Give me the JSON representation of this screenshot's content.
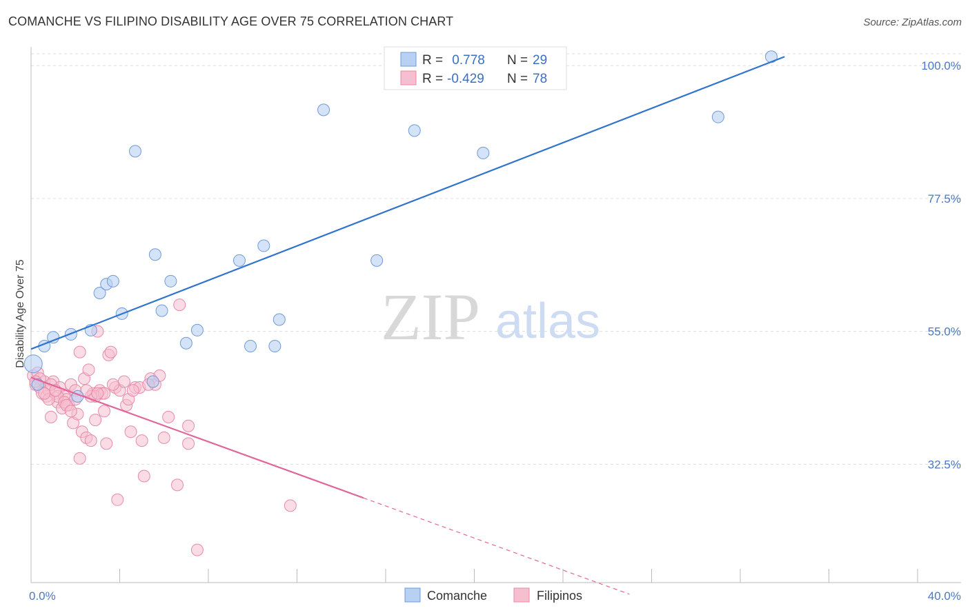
{
  "title": "COMANCHE VS FILIPINO DISABILITY AGE OVER 75 CORRELATION CHART",
  "source": "Source: ZipAtlas.com",
  "watermark": {
    "zip": "ZIP",
    "atlas": "atlas"
  },
  "colors": {
    "comanche_fill": "#b8d0f2",
    "comanche_stroke": "#6f9ad8",
    "comanche_line": "#2f73cc",
    "filipinos_fill": "#f6bfd0",
    "filipinos_stroke": "#e889a8",
    "filipinos_line": "#e0669a",
    "tick_label": "#4a78c2",
    "grid": "#dddddd"
  },
  "legend": {
    "rows": [
      {
        "r_label": "R =",
        "r_value": " 0.778",
        "n_label": "N =",
        "n_value": "29"
      },
      {
        "r_label": "R =",
        "r_value": "-0.429",
        "n_label": "N =",
        "n_value": "78"
      }
    ]
  },
  "chart_data": {
    "type": "scatter",
    "title": "COMANCHE VS FILIPINO DISABILITY AGE OVER 75 CORRELATION CHART",
    "xlabel": "",
    "ylabel": "Disability Age Over 75",
    "xlim": [
      0,
      40
    ],
    "ylim": [
      12,
      102
    ],
    "x_tick_labels": [
      "0.0%",
      "40.0%"
    ],
    "y_ticks": [
      32.5,
      55.0,
      77.5,
      100.0
    ],
    "y_tick_labels": [
      "32.5%",
      "55.0%",
      "77.5%",
      "100.0%"
    ],
    "grid": "horizontal dashed",
    "legend_position": "top-center and bottom",
    "series": [
      {
        "name": "Comanche",
        "r": 0.778,
        "n": 29,
        "points": [
          [
            0.1,
            49.5
          ],
          [
            0.6,
            52.5
          ],
          [
            1.0,
            54.0
          ],
          [
            1.8,
            54.5
          ],
          [
            2.7,
            55.2
          ],
          [
            3.1,
            61.5
          ],
          [
            3.4,
            63.0
          ],
          [
            3.7,
            63.5
          ],
          [
            4.1,
            58.0
          ],
          [
            4.7,
            85.5
          ],
          [
            5.5,
            46.5
          ],
          [
            5.6,
            68.0
          ],
          [
            5.9,
            58.5
          ],
          [
            6.3,
            63.5
          ],
          [
            7.0,
            53.0
          ],
          [
            7.5,
            55.2
          ],
          [
            9.4,
            67.0
          ],
          [
            9.9,
            52.5
          ],
          [
            10.5,
            69.5
          ],
          [
            11.0,
            52.5
          ],
          [
            11.2,
            57.0
          ],
          [
            13.2,
            92.5
          ],
          [
            15.6,
            67.0
          ],
          [
            17.3,
            89.0
          ],
          [
            20.4,
            85.2
          ],
          [
            31.0,
            91.3
          ],
          [
            33.4,
            101.5
          ],
          [
            2.1,
            44.0
          ],
          [
            0.3,
            46.0
          ]
        ],
        "trend": {
          "x": [
            0,
            34.0
          ],
          "y": [
            52.0,
            101.5
          ]
        }
      },
      {
        "name": "Filipinos",
        "r": -0.429,
        "n": 78,
        "points": [
          [
            0.1,
            47.5
          ],
          [
            0.2,
            46.0
          ],
          [
            0.3,
            48.0
          ],
          [
            0.4,
            45.5
          ],
          [
            0.5,
            44.5
          ],
          [
            0.6,
            46.5
          ],
          [
            0.7,
            44.0
          ],
          [
            0.8,
            45.0
          ],
          [
            0.9,
            40.5
          ],
          [
            1.0,
            46.5
          ],
          [
            1.1,
            44.5
          ],
          [
            1.2,
            43.0
          ],
          [
            1.3,
            45.5
          ],
          [
            1.4,
            42.0
          ],
          [
            1.5,
            44.0
          ],
          [
            1.6,
            43.5
          ],
          [
            1.7,
            42.5
          ],
          [
            1.8,
            46.0
          ],
          [
            1.9,
            39.5
          ],
          [
            2.0,
            45.0
          ],
          [
            2.1,
            41.0
          ],
          [
            2.2,
            51.5
          ],
          [
            2.3,
            38.0
          ],
          [
            2.4,
            47.0
          ],
          [
            2.5,
            37.0
          ],
          [
            2.6,
            48.5
          ],
          [
            2.7,
            36.5
          ],
          [
            2.8,
            44.5
          ],
          [
            2.9,
            40.0
          ],
          [
            3.0,
            55.0
          ],
          [
            3.1,
            45.0
          ],
          [
            3.2,
            44.5
          ],
          [
            3.3,
            41.5
          ],
          [
            3.4,
            36.0
          ],
          [
            3.5,
            51.0
          ],
          [
            3.6,
            51.5
          ],
          [
            3.8,
            45.5
          ],
          [
            3.9,
            26.5
          ],
          [
            4.0,
            45.0
          ],
          [
            4.2,
            46.5
          ],
          [
            4.3,
            42.5
          ],
          [
            4.4,
            43.5
          ],
          [
            4.5,
            38.0
          ],
          [
            4.7,
            45.5
          ],
          [
            4.9,
            45.5
          ],
          [
            5.0,
            36.5
          ],
          [
            5.1,
            30.5
          ],
          [
            5.4,
            47.0
          ],
          [
            5.6,
            46.0
          ],
          [
            5.8,
            47.5
          ],
          [
            6.0,
            37.0
          ],
          [
            6.2,
            40.5
          ],
          [
            6.6,
            29.0
          ],
          [
            6.7,
            59.5
          ],
          [
            7.1,
            39.0
          ],
          [
            7.1,
            36.0
          ],
          [
            7.5,
            18.0
          ],
          [
            11.7,
            25.5
          ],
          [
            1.2,
            44.0
          ],
          [
            0.9,
            46.0
          ],
          [
            0.4,
            47.0
          ],
          [
            2.9,
            44.0
          ],
          [
            2.0,
            43.5
          ],
          [
            1.5,
            43.0
          ],
          [
            0.8,
            43.5
          ],
          [
            3.7,
            46.0
          ],
          [
            2.2,
            33.5
          ],
          [
            1.6,
            42.5
          ],
          [
            3.3,
            44.5
          ],
          [
            0.6,
            44.5
          ],
          [
            2.7,
            44.0
          ],
          [
            4.6,
            45.0
          ],
          [
            1.1,
            45.0
          ],
          [
            2.5,
            45.0
          ],
          [
            0.2,
            46.5
          ],
          [
            1.8,
            41.5
          ],
          [
            5.3,
            46.0
          ],
          [
            3.0,
            44.5
          ]
        ],
        "trend": {
          "x": [
            0,
            15.0
          ],
          "y": [
            47.2,
            26.8
          ]
        },
        "trend_extension": {
          "x": [
            15.0,
            27.0
          ],
          "y": [
            26.8,
            10.5
          ]
        }
      }
    ]
  },
  "bottom_legend": [
    {
      "label": "Comanche"
    },
    {
      "label": "Filipinos"
    }
  ]
}
